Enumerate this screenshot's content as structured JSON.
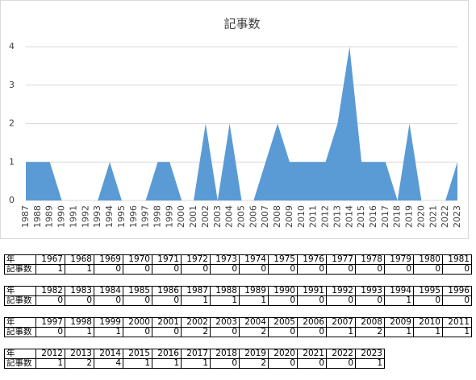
{
  "chart_data": {
    "type": "area",
    "title": "記事数",
    "categories": [
      "1987",
      "1988",
      "1989",
      "1990",
      "1991",
      "1992",
      "1993",
      "1994",
      "1995",
      "1996",
      "1997",
      "1998",
      "1999",
      "2000",
      "2001",
      "2002",
      "2003",
      "2004",
      "2005",
      "2006",
      "2007",
      "2008",
      "2009",
      "2010",
      "2011",
      "2012",
      "2013",
      "2014",
      "2015",
      "2016",
      "2017",
      "2018",
      "2019",
      "2020",
      "2021",
      "2022",
      "2023"
    ],
    "values": [
      1,
      1,
      1,
      0,
      0,
      0,
      0,
      1,
      0,
      0,
      0,
      1,
      1,
      0,
      0,
      2,
      0,
      2,
      0,
      0,
      1,
      2,
      1,
      1,
      1,
      1,
      2,
      4,
      1,
      1,
      1,
      0,
      2,
      0,
      0,
      0,
      1
    ],
    "color": "#5b9bd5",
    "ylim": [
      0,
      4
    ],
    "yticks": [
      0,
      1,
      2,
      3,
      4
    ],
    "grid": true
  },
  "tables": [
    {
      "year_label": "年",
      "count_label": "記事数",
      "years": [
        1967,
        1968,
        1969,
        1970,
        1971,
        1972,
        1973,
        1974,
        1975,
        1976,
        1977,
        1978,
        1979,
        1980,
        1981
      ],
      "counts": [
        1,
        1,
        0,
        0,
        0,
        0,
        0,
        0,
        0,
        0,
        0,
        0,
        0,
        0,
        0
      ]
    },
    {
      "year_label": "年",
      "count_label": "記事数",
      "years": [
        1982,
        1983,
        1984,
        1985,
        1986,
        1987,
        1988,
        1989,
        1990,
        1991,
        1992,
        1993,
        1994,
        1995,
        1996
      ],
      "counts": [
        0,
        0,
        0,
        0,
        0,
        1,
        1,
        1,
        0,
        0,
        0,
        0,
        1,
        0,
        0
      ]
    },
    {
      "year_label": "年",
      "count_label": "記事数",
      "years": [
        1997,
        1998,
        1999,
        2000,
        2001,
        2002,
        2003,
        2004,
        2005,
        2006,
        2007,
        2008,
        2009,
        2010,
        2011
      ],
      "counts": [
        0,
        1,
        1,
        0,
        0,
        2,
        0,
        2,
        0,
        0,
        1,
        2,
        1,
        1,
        1
      ]
    },
    {
      "year_label": "年",
      "count_label": "記事数",
      "years": [
        2012,
        2013,
        2014,
        2015,
        2016,
        2017,
        2018,
        2019,
        2020,
        2021,
        2022,
        2023
      ],
      "counts": [
        1,
        2,
        4,
        1,
        1,
        1,
        0,
        2,
        0,
        0,
        0,
        1
      ]
    }
  ]
}
